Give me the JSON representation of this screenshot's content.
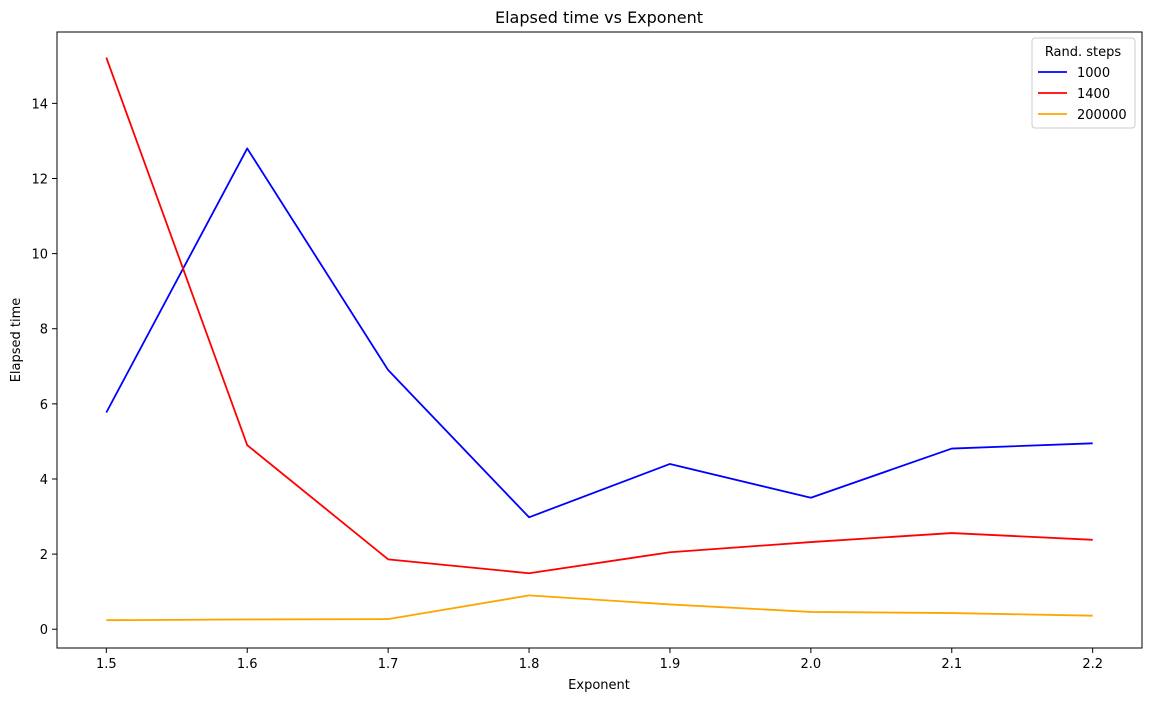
{
  "chart_data": {
    "type": "line",
    "title": "Elapsed time vs Exponent",
    "xlabel": "Exponent",
    "ylabel": "Elapsed time",
    "x": [
      1.5,
      1.6,
      1.7,
      1.8,
      1.9,
      2.0,
      2.1,
      2.2
    ],
    "x_tick_labels": [
      "1.5",
      "1.6",
      "1.7",
      "1.8",
      "1.9",
      "2.0",
      "2.1",
      "2.2"
    ],
    "y_ticks": [
      0,
      2,
      4,
      6,
      8,
      10,
      12,
      14
    ],
    "y_tick_labels": [
      "0",
      "2",
      "4",
      "6",
      "8",
      "10",
      "12",
      "14"
    ],
    "xlim": [
      1.465,
      2.235
    ],
    "ylim": [
      -0.5,
      15.9
    ],
    "grid": false,
    "legend_title": "Rand. steps",
    "legend_position": "top-right",
    "series": [
      {
        "name": "1000",
        "color": "#0000ff",
        "values": [
          5.77,
          12.8,
          6.9,
          2.98,
          4.4,
          3.5,
          4.81,
          4.95
        ]
      },
      {
        "name": "1400",
        "color": "#ff0000",
        "values": [
          15.22,
          4.9,
          1.86,
          1.49,
          2.05,
          2.32,
          2.56,
          2.38
        ]
      },
      {
        "name": "200000",
        "color": "#ffa500",
        "values": [
          0.24,
          0.26,
          0.27,
          0.9,
          0.66,
          0.46,
          0.43,
          0.36
        ]
      }
    ]
  }
}
